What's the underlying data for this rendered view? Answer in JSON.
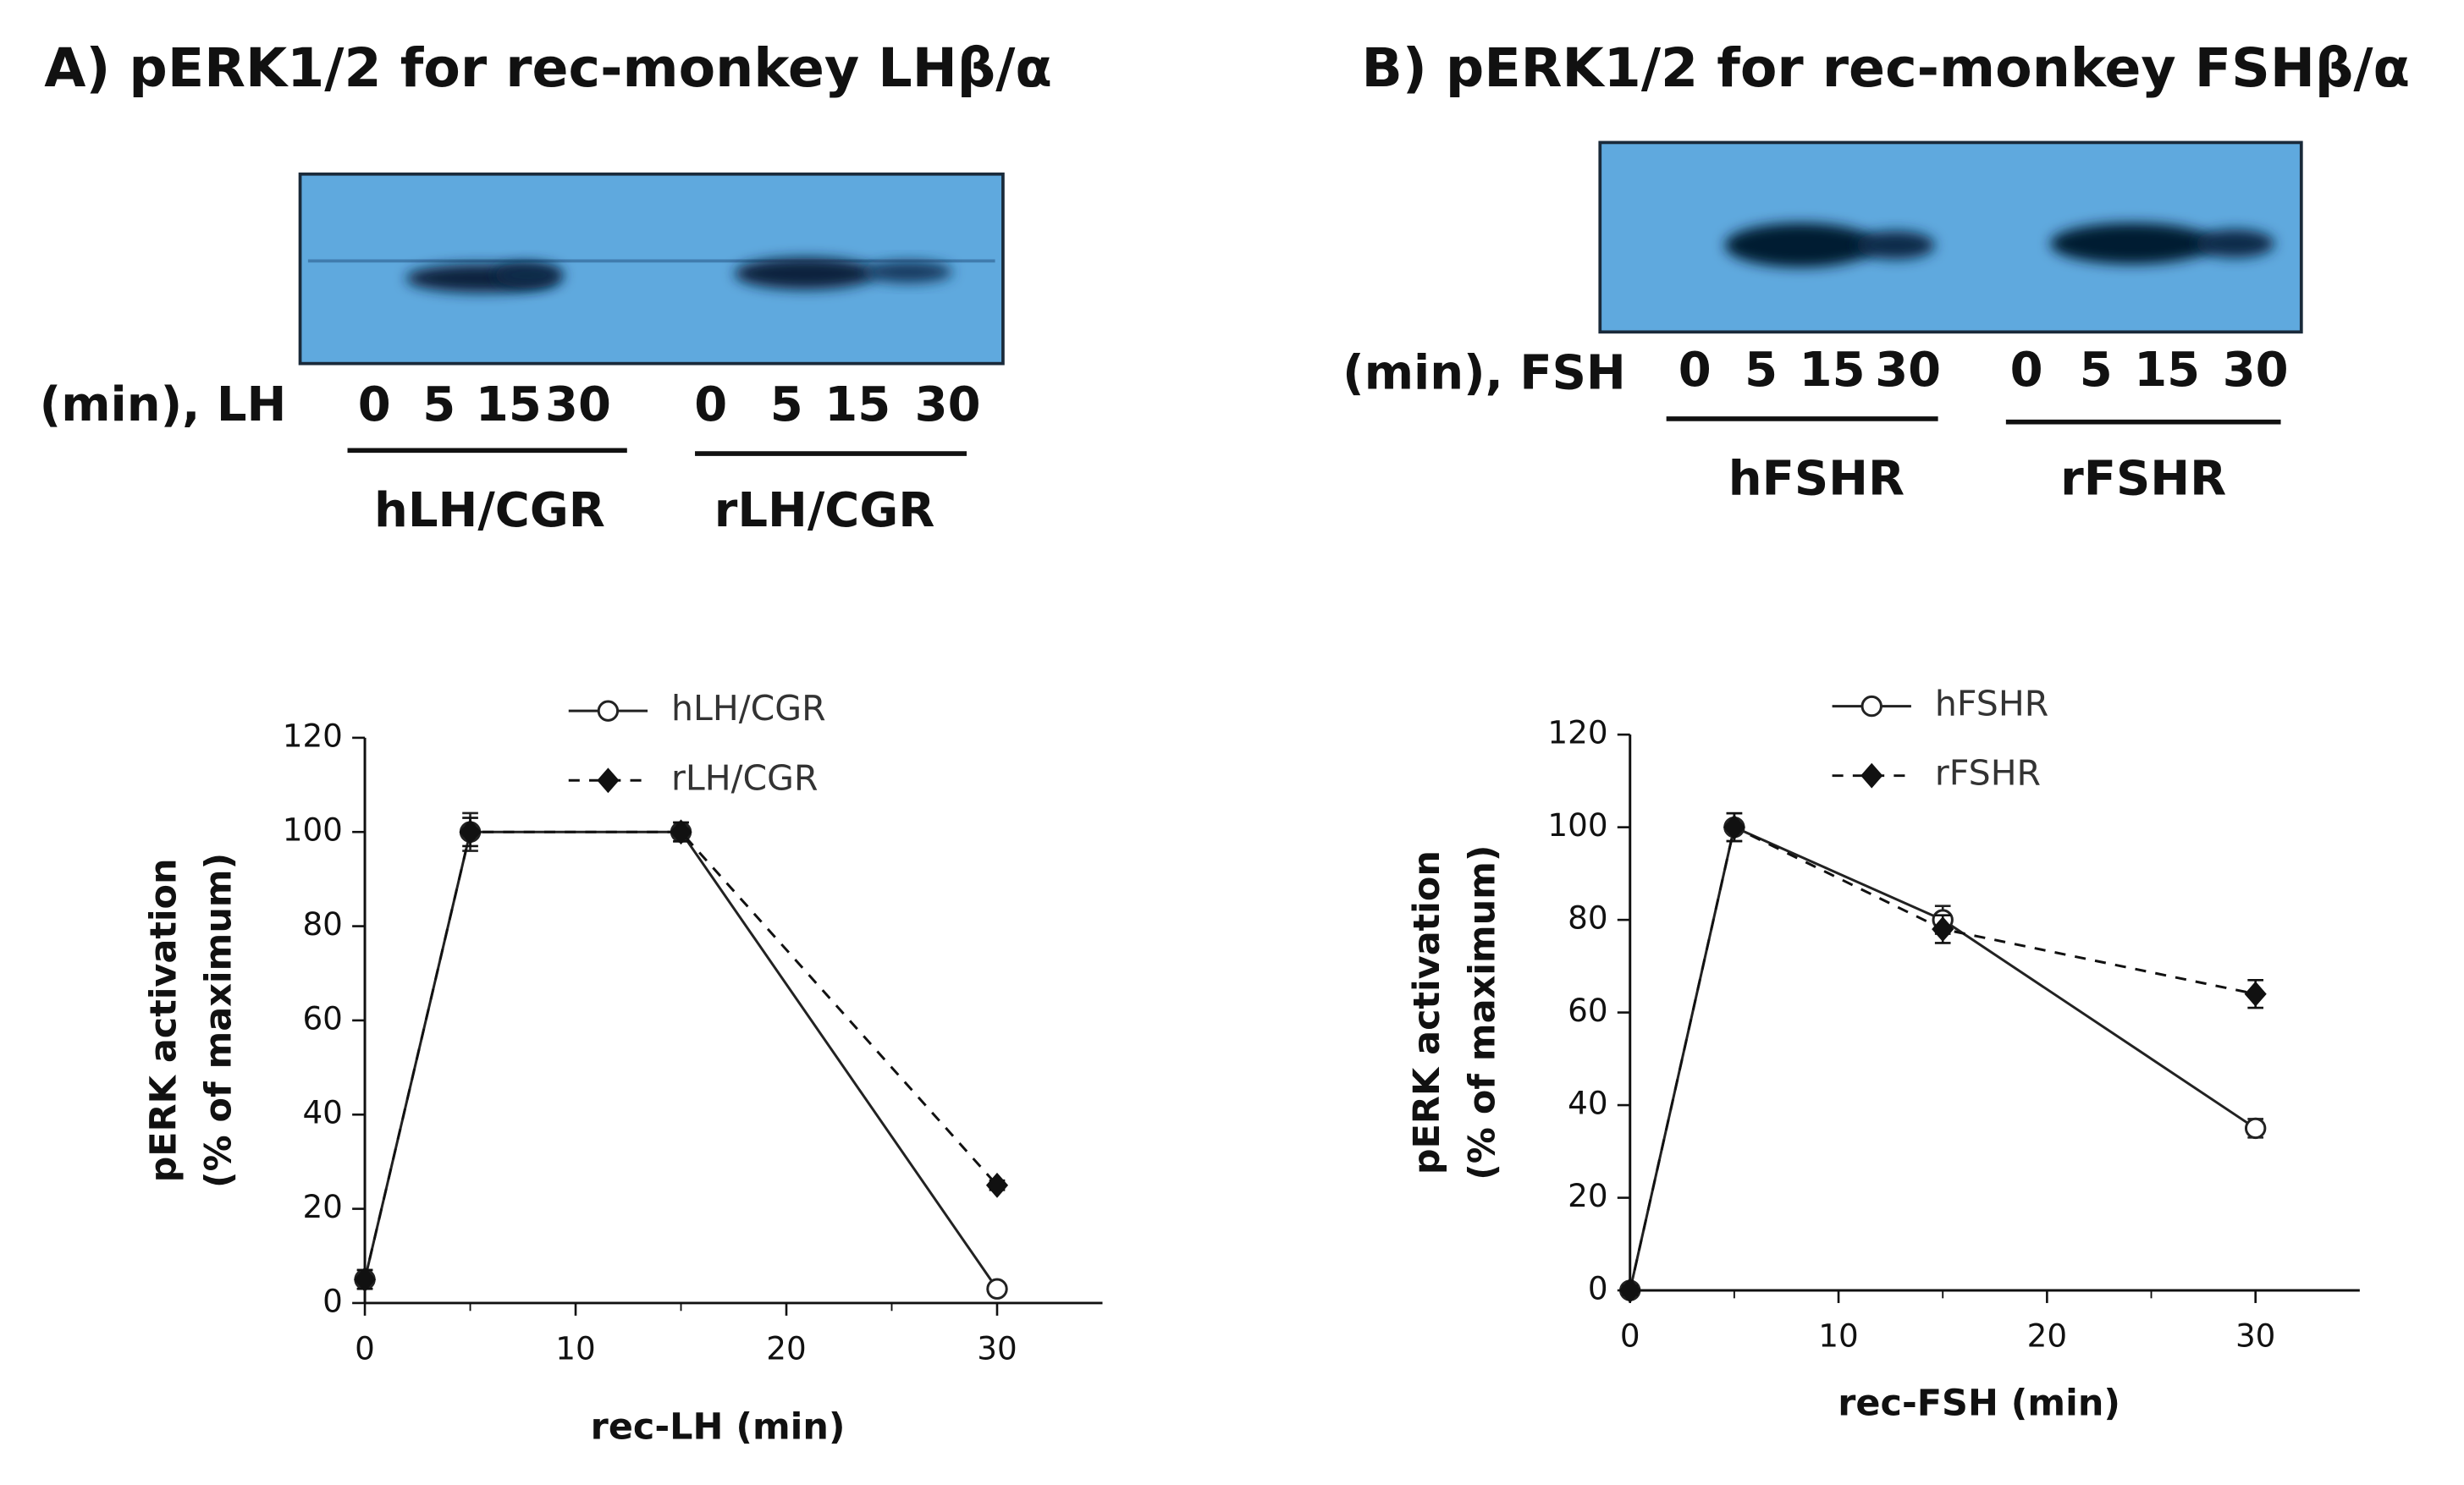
{
  "blots": [
    {
      "title": "A) pERK1/2 for rec-monkey LHβ/α",
      "lane_label": "(min), LH",
      "lanes": [
        "0",
        "5",
        "15",
        "30",
        "0",
        "5",
        "15",
        "30"
      ],
      "groups": [
        "hLH/CGR",
        "rLH/CGR"
      ]
    },
    {
      "title": "B) pERK1/2 for rec-monkey FSHβ/α",
      "lane_label": "(min), FSH",
      "lanes": [
        "0",
        "5",
        "15",
        "30",
        "0",
        "5",
        "15",
        "30"
      ],
      "groups": [
        "hFSHR",
        "rFSHR"
      ]
    }
  ],
  "chart_data": [
    {
      "type": "line",
      "xlabel": "rec-LH (min)",
      "ylabel": [
        "pERK activation",
        "(% of maximum)"
      ],
      "x": [
        0,
        5,
        15,
        30
      ],
      "xlim": [
        0,
        35
      ],
      "xticks": [
        0,
        10,
        20,
        30
      ],
      "ylim": [
        0,
        120
      ],
      "yticks": [
        0,
        20,
        40,
        60,
        80,
        100,
        120
      ],
      "series": [
        {
          "name": "hLH/CGR",
          "color": "#222222",
          "marker": "open-circle",
          "linestyle": "solid",
          "values": [
            5,
            100,
            100,
            3
          ],
          "errors": [
            2,
            4,
            2,
            1
          ]
        },
        {
          "name": "rLH/CGR",
          "color": "#111111",
          "marker": "filled-diamond",
          "linestyle": "dashed",
          "values": [
            5,
            100,
            100,
            25
          ],
          "errors": [
            2,
            3,
            2,
            1
          ]
        }
      ]
    },
    {
      "type": "line",
      "xlabel": "rec-FSH (min)",
      "ylabel": [
        "pERK activation",
        "(% of maximum)"
      ],
      "x": [
        0,
        5,
        15,
        30
      ],
      "xlim": [
        0,
        35
      ],
      "xticks": [
        0,
        10,
        20,
        30
      ],
      "ylim": [
        0,
        120
      ],
      "yticks": [
        0,
        20,
        40,
        60,
        80,
        100,
        120
      ],
      "series": [
        {
          "name": "hFSHR",
          "color": "#222222",
          "marker": "open-circle",
          "linestyle": "solid",
          "values": [
            0,
            100,
            80,
            35
          ],
          "errors": [
            1,
            3,
            3,
            2
          ]
        },
        {
          "name": "rFSHR",
          "color": "#111111",
          "marker": "filled-diamond",
          "linestyle": "dashed",
          "values": [
            0,
            100,
            78,
            64
          ],
          "errors": [
            1,
            3,
            3,
            3
          ]
        }
      ]
    }
  ]
}
